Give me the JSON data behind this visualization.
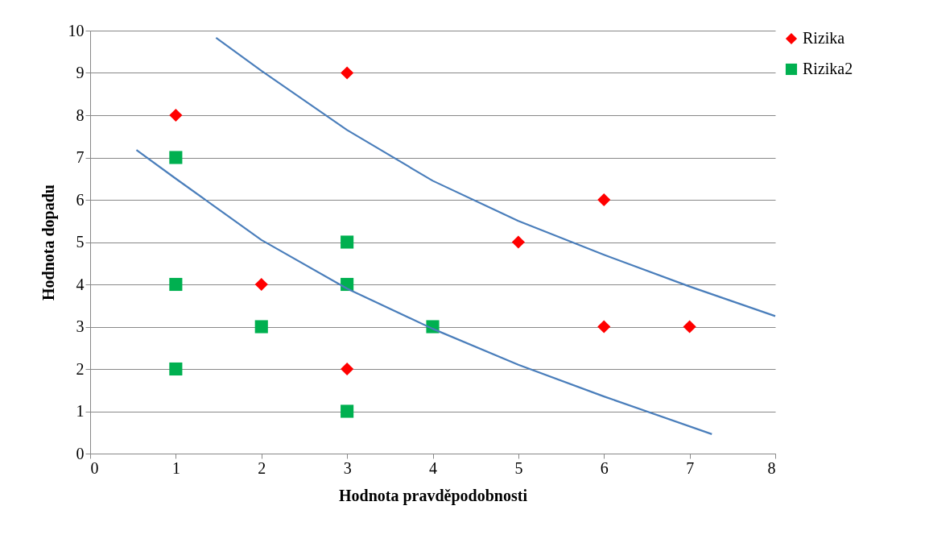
{
  "chart_data": {
    "type": "scatter",
    "xlabel": "Hodnota pravděpodobnosti",
    "ylabel": "Hodnota dopadu",
    "xlim": [
      0,
      8
    ],
    "xticks": [
      0,
      1,
      2,
      3,
      4,
      5,
      6,
      7,
      8
    ],
    "ylim": [
      0,
      10
    ],
    "yticks": [
      0,
      1,
      2,
      3,
      4,
      5,
      6,
      7,
      8,
      9,
      10
    ],
    "grid": "y",
    "legend": "right",
    "series": [
      {
        "name": "Rizika",
        "color": "#ff0000",
        "marker": "diamond",
        "x": [
          1,
          3,
          2,
          3,
          5,
          6,
          6,
          7
        ],
        "values": [
          8,
          9,
          4,
          2,
          5,
          6,
          3,
          3
        ]
      },
      {
        "name": "Rizika2",
        "color": "#00b050",
        "marker": "square",
        "x": [
          1,
          1,
          1,
          2,
          3,
          3,
          3,
          4
        ],
        "values": [
          7,
          4,
          2,
          3,
          5,
          4,
          1,
          3
        ]
      },
      {
        "type": "line",
        "color": "#4a7ebb",
        "marker": "none",
        "line_style": "solid",
        "x": [
          1.47,
          2,
          3,
          4,
          5,
          6,
          7,
          8
        ],
        "values": [
          9.83,
          9.05,
          7.65,
          6.45,
          5.5,
          4.7,
          3.95,
          3.25
        ]
      },
      {
        "type": "line",
        "color": "#4a7ebb",
        "marker": "none",
        "line_style": "solid",
        "x": [
          0.54,
          1,
          2,
          3,
          4,
          5,
          6,
          7.26
        ],
        "values": [
          7.18,
          6.5,
          5.05,
          3.9,
          2.95,
          2.1,
          1.35,
          0.46
        ]
      }
    ]
  }
}
